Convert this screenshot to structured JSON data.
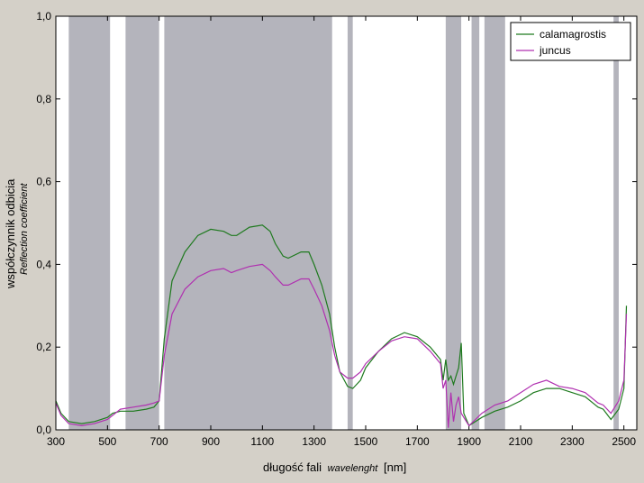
{
  "chart_data": {
    "type": "line",
    "xlabel_pl": "długość fali",
    "xlabel_en": "wavelenght",
    "xlabel_unit": "[nm]",
    "ylabel_pl": "współczynnik odbicia",
    "ylabel_en": "Reflection coefficient",
    "xlim": [
      300,
      2550
    ],
    "ylim": [
      0,
      1
    ],
    "x_ticks": [
      300,
      500,
      700,
      900,
      1100,
      1300,
      1500,
      1700,
      1900,
      2100,
      2300,
      2500
    ],
    "x_tick_labels": [
      "300",
      "500",
      "700",
      "900",
      "1100",
      "1300",
      "1500",
      "1700",
      "1900",
      "2100",
      "2300",
      "2500"
    ],
    "y_ticks": [
      0,
      0.2,
      0.4,
      0.6,
      0.8,
      1.0
    ],
    "y_tick_labels": [
      "0,0",
      "0,2",
      "0,4",
      "0,6",
      "0,8",
      "1,0"
    ],
    "legend_position": "top-right",
    "shaded_bands": [
      [
        350,
        510
      ],
      [
        570,
        700
      ],
      [
        720,
        1370
      ],
      [
        1430,
        1450
      ],
      [
        1810,
        1870
      ],
      [
        1910,
        1940
      ],
      [
        1960,
        2040
      ],
      [
        2460,
        2480
      ]
    ],
    "series": [
      {
        "name": "calamagrostis",
        "color": "#1f7a1f",
        "x": [
          300,
          320,
          350,
          400,
          450,
          500,
          520,
          550,
          600,
          650,
          680,
          700,
          720,
          750,
          800,
          850,
          900,
          950,
          980,
          1000,
          1050,
          1100,
          1130,
          1150,
          1180,
          1200,
          1250,
          1280,
          1300,
          1330,
          1360,
          1380,
          1400,
          1430,
          1450,
          1480,
          1500,
          1550,
          1600,
          1650,
          1700,
          1750,
          1790,
          1800,
          1810,
          1820,
          1830,
          1840,
          1850,
          1860,
          1870,
          1880,
          1900,
          1950,
          2000,
          2050,
          2100,
          2150,
          2200,
          2250,
          2300,
          2350,
          2400,
          2420,
          2450,
          2480,
          2500,
          2510
        ],
        "y": [
          0.07,
          0.04,
          0.02,
          0.015,
          0.02,
          0.03,
          0.04,
          0.045,
          0.045,
          0.05,
          0.055,
          0.07,
          0.22,
          0.36,
          0.43,
          0.47,
          0.485,
          0.48,
          0.47,
          0.47,
          0.49,
          0.495,
          0.48,
          0.45,
          0.42,
          0.415,
          0.43,
          0.43,
          0.4,
          0.35,
          0.28,
          0.2,
          0.14,
          0.105,
          0.1,
          0.12,
          0.15,
          0.19,
          0.22,
          0.235,
          0.225,
          0.2,
          0.17,
          0.12,
          0.17,
          0.12,
          0.13,
          0.11,
          0.13,
          0.15,
          0.21,
          0.04,
          0.01,
          0.03,
          0.045,
          0.055,
          0.07,
          0.09,
          0.1,
          0.1,
          0.09,
          0.08,
          0.055,
          0.05,
          0.025,
          0.05,
          0.1,
          0.3
        ]
      },
      {
        "name": "juncus",
        "color": "#b030b0",
        "x": [
          300,
          320,
          350,
          400,
          450,
          500,
          520,
          550,
          600,
          650,
          680,
          700,
          720,
          750,
          800,
          850,
          900,
          950,
          980,
          1000,
          1050,
          1100,
          1130,
          1150,
          1180,
          1200,
          1250,
          1280,
          1300,
          1330,
          1360,
          1380,
          1400,
          1430,
          1450,
          1480,
          1500,
          1550,
          1600,
          1650,
          1700,
          1750,
          1790,
          1800,
          1810,
          1820,
          1830,
          1840,
          1850,
          1860,
          1870,
          1880,
          1900,
          1950,
          2000,
          2050,
          2100,
          2150,
          2200,
          2250,
          2300,
          2350,
          2400,
          2420,
          2450,
          2480,
          2500,
          2510
        ],
        "y": [
          0.065,
          0.035,
          0.015,
          0.01,
          0.015,
          0.025,
          0.035,
          0.05,
          0.055,
          0.06,
          0.065,
          0.07,
          0.18,
          0.28,
          0.34,
          0.37,
          0.385,
          0.39,
          0.38,
          0.385,
          0.395,
          0.4,
          0.385,
          0.37,
          0.35,
          0.35,
          0.365,
          0.365,
          0.34,
          0.3,
          0.24,
          0.18,
          0.14,
          0.125,
          0.125,
          0.14,
          0.16,
          0.19,
          0.215,
          0.225,
          0.22,
          0.19,
          0.16,
          0.1,
          0.12,
          0.005,
          0.09,
          0.02,
          0.06,
          0.08,
          0.04,
          0.03,
          0.01,
          0.04,
          0.06,
          0.07,
          0.09,
          0.11,
          0.12,
          0.105,
          0.1,
          0.09,
          0.065,
          0.06,
          0.04,
          0.07,
          0.12,
          0.28
        ]
      }
    ]
  }
}
